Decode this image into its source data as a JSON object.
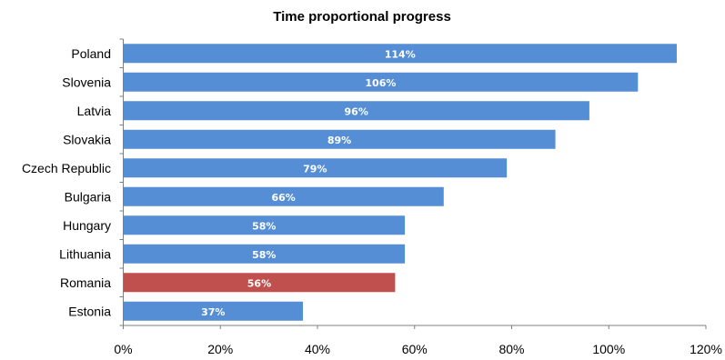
{
  "chart_data": {
    "type": "bar",
    "orientation": "horizontal",
    "title": "Time proportional progress",
    "categories": [
      "Poland",
      "Slovenia",
      "Latvia",
      "Slovakia",
      "Czech Republic",
      "Bulgaria",
      "Hungary",
      "Lithuania",
      "Romania",
      "Estonia"
    ],
    "values": [
      114,
      106,
      96,
      89,
      79,
      66,
      58,
      58,
      56,
      37
    ],
    "data_labels": [
      "114%",
      "106%",
      "96%",
      "89%",
      "79%",
      "66%",
      "58%",
      "58%",
      "56%",
      "37%"
    ],
    "highlight": "Romania",
    "xlim": [
      0,
      120
    ],
    "xticks": [
      0,
      20,
      40,
      60,
      80,
      100,
      120
    ],
    "xtick_labels": [
      "0%",
      "20%",
      "40%",
      "60%",
      "80%",
      "100%",
      "120%"
    ],
    "xlabel": "",
    "ylabel": "",
    "grid": false,
    "legend": "none",
    "colors": {
      "bar": "#558ed5",
      "highlight": "#c0504d",
      "axis": "#7f7f7f"
    }
  }
}
